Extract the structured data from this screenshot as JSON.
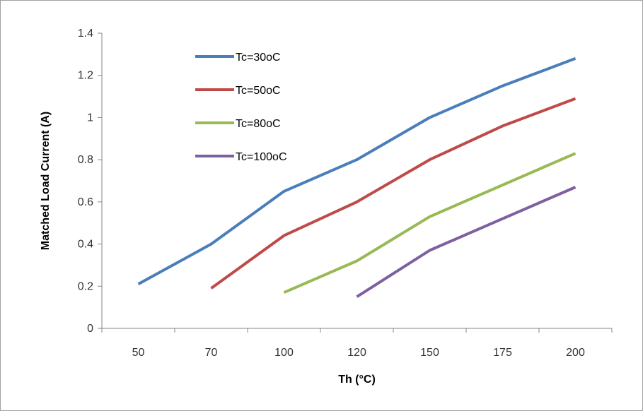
{
  "chart_data": {
    "type": "line",
    "title": "",
    "xlabel": "Th (°C)",
    "ylabel": "Matched Load Current (A)",
    "categories": [
      "50",
      "70",
      "100",
      "120",
      "150",
      "175",
      "200"
    ],
    "ylim": [
      0,
      1.4
    ],
    "yticks": [
      "0",
      "0.2",
      "0.4",
      "0.6",
      "0.8",
      "1",
      "1.2",
      "1.4"
    ],
    "ytick_values": [
      0,
      0.2,
      0.4,
      0.6,
      0.8,
      1.0,
      1.2,
      1.4
    ],
    "grid": false,
    "legend_position": "top-left",
    "series": [
      {
        "name": "Tc=30oC",
        "color": "#4a7ebb",
        "values": [
          0.21,
          0.4,
          0.65,
          0.8,
          1.0,
          1.15,
          1.28
        ]
      },
      {
        "name": "Tc=50oC",
        "color": "#be4b48",
        "values": [
          null,
          0.19,
          0.44,
          0.6,
          0.8,
          0.96,
          1.09
        ]
      },
      {
        "name": "Tc=80oC",
        "color": "#98b954",
        "values": [
          null,
          null,
          0.17,
          0.32,
          0.53,
          0.68,
          0.83
        ]
      },
      {
        "name": "Tc=100oC",
        "color": "#7d60a0",
        "values": [
          null,
          null,
          null,
          0.15,
          0.37,
          0.52,
          0.67
        ]
      }
    ]
  }
}
